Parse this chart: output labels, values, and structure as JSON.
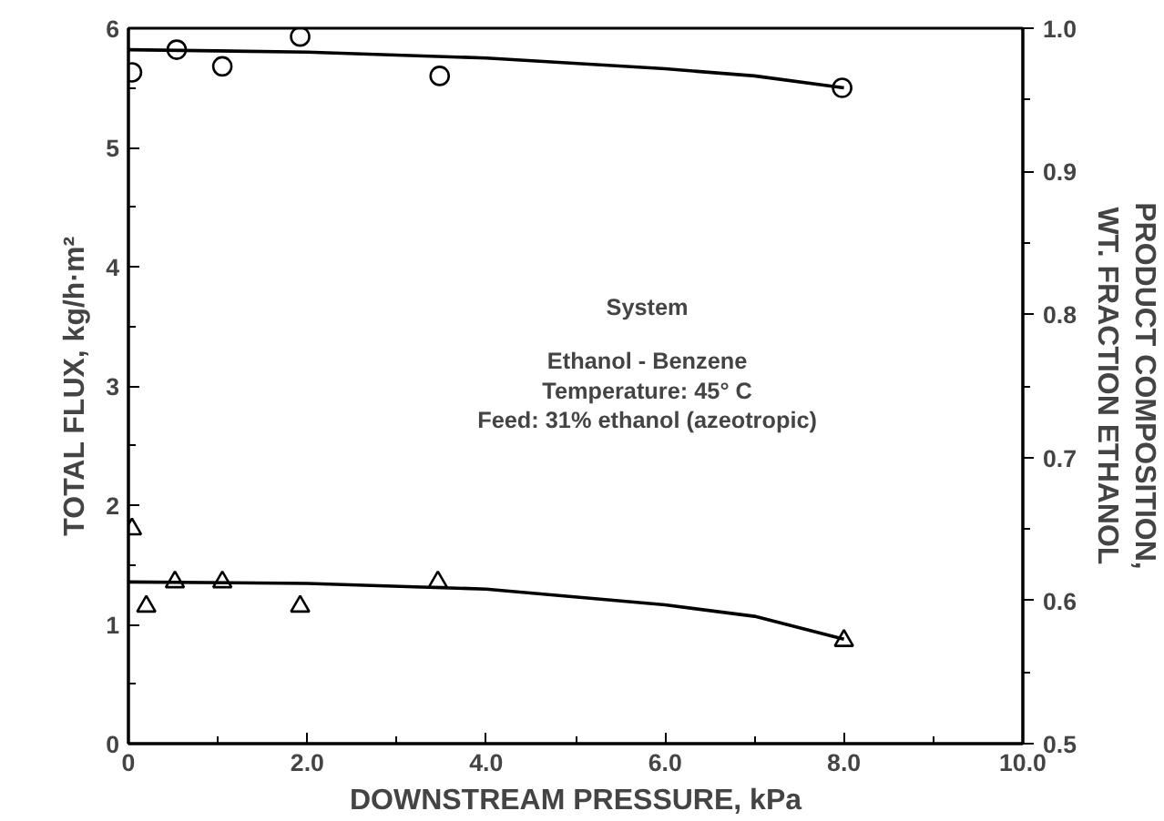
{
  "chart_data": {
    "type": "scatter",
    "xlabel": "DOWNSTREAM PRESSURE, kPa",
    "ylabel": "TOTAL FLUX, kg/h·m²",
    "y2label": "PRODUCT COMPOSITION,\nWT. FRACTION ETHANOL",
    "annotations": [
      "System",
      "Ethanol - Benzene",
      "Temperature: 45° C",
      "Feed: 31% ethanol (azeotropic)"
    ],
    "xlim": [
      0,
      10
    ],
    "ylim": [
      0,
      6
    ],
    "y2lim": [
      0.5,
      1.0
    ],
    "xticks": [
      0,
      {
        "value": 1,
        "label": null
      },
      {
        "value": 2,
        "label": "2.0"
      },
      {
        "value": 3,
        "label": null
      },
      {
        "value": 4,
        "label": "4.0"
      },
      {
        "value": 5,
        "label": null
      },
      {
        "value": 6,
        "label": "6.0"
      },
      {
        "value": 7,
        "label": null
      },
      {
        "value": 8,
        "label": "8.0"
      },
      {
        "value": 9,
        "label": null
      },
      {
        "value": 10,
        "label": "10.0"
      }
    ],
    "yticks": [
      0,
      {
        "value": 0.5,
        "label": null
      },
      1,
      {
        "value": 1.5,
        "label": null
      },
      2,
      {
        "value": 2.5,
        "label": null
      },
      3,
      {
        "value": 3.5,
        "label": null
      },
      4,
      {
        "value": 4.5,
        "label": null
      },
      5,
      {
        "value": 5.5,
        "label": null
      },
      6
    ],
    "y2ticks": [
      0.5,
      {
        "value": 0.55,
        "label": null
      },
      0.6,
      {
        "value": 0.65,
        "label": null
      },
      0.7,
      {
        "value": 0.75,
        "label": null
      },
      0.8,
      {
        "value": 0.85,
        "label": null
      },
      0.9,
      {
        "value": 0.95,
        "label": null
      },
      {
        "value": 1.0,
        "label": "1.0"
      }
    ],
    "grid": false,
    "series": [
      {
        "marker": "circle",
        "color": "#000000",
        "x": [
          0.04,
          0.54,
          1.05,
          1.92,
          3.48,
          7.98
        ],
        "values": [
          5.63,
          5.82,
          5.68,
          5.93,
          5.6,
          5.5
        ]
      },
      {
        "type": "line",
        "line_style": "solid",
        "color": "#000000",
        "x": [
          0,
          2,
          4,
          6,
          7,
          8
        ],
        "values": [
          5.82,
          5.8,
          5.75,
          5.66,
          5.6,
          5.5
        ]
      },
      {
        "marker": "triangle",
        "axis": "y2",
        "color": "#000000",
        "x": [
          0.04,
          0.2,
          0.52,
          1.05,
          1.92,
          3.46,
          8.0
        ],
        "values": [
          0.65,
          0.596,
          0.613,
          0.613,
          0.596,
          0.613,
          0.572
        ]
      },
      {
        "type": "line",
        "line_style": "solid",
        "axis": "y2",
        "color": "#000000",
        "x": [
          0,
          2,
          4,
          6,
          7,
          8
        ],
        "values": [
          0.613,
          0.612,
          0.608,
          0.597,
          0.589,
          0.573
        ]
      }
    ]
  }
}
